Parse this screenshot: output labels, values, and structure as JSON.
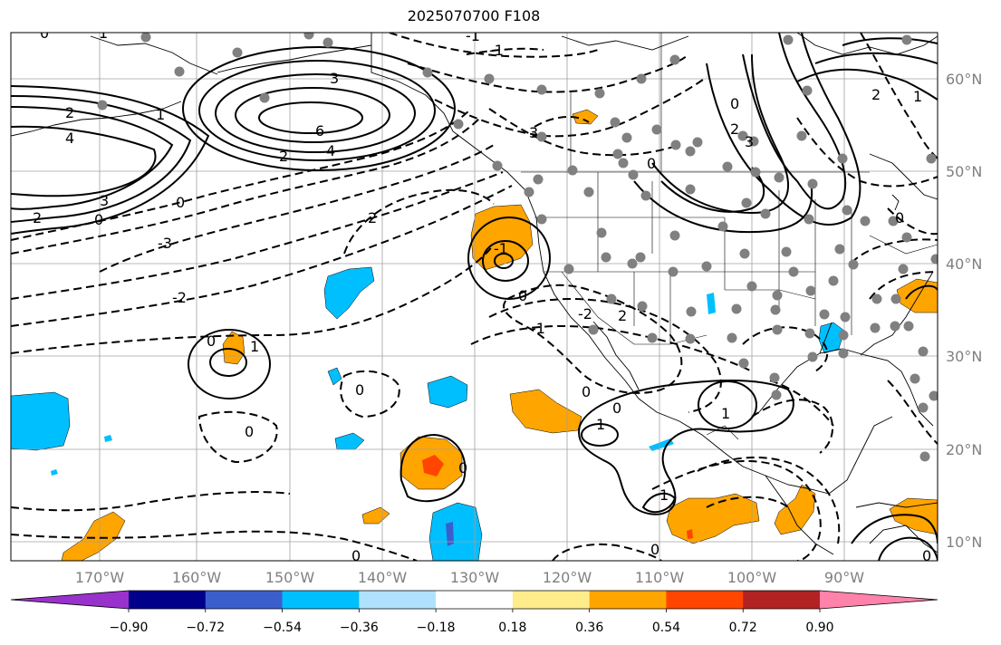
{
  "title": "2025070700 F108",
  "longitude_labels": [
    "170°W",
    "160°W",
    "150°W",
    "140°W",
    "130°W",
    "120°W",
    "110°W",
    "100°W",
    "90°W"
  ],
  "latitude_labels": [
    "60°N",
    "50°N",
    "40°N",
    "30°N",
    "20°N",
    "10°N"
  ],
  "colorbar": {
    "tick_labels": [
      "−0.90",
      "−0.72",
      "−0.54",
      "−0.36",
      "−0.18",
      "0.18",
      "0.36",
      "0.54",
      "0.72",
      "0.90"
    ],
    "colors": [
      "#9932cc",
      "#00008b",
      "#3a5fcd",
      "#00bfff",
      "#b0e2ff",
      "#ffffff",
      "#ffec8b",
      "#ffa500",
      "#ff4500",
      "#b22222",
      "#ff82ab"
    ]
  },
  "contour_labels": {
    "west_high_4": "4",
    "west_high_3": "3",
    "west_high_2": "2",
    "west_high_2b": "2",
    "west_high_1": "1",
    "west_high_0": "0",
    "west_low_3": "-3",
    "west_low_2": "-2",
    "aleutian_6": "6",
    "aleutian_4": "4",
    "aleutian_3": "3",
    "aleutian_2": "2",
    "coast_2": "2",
    "coast_1": "-1",
    "gulf_0": "0",
    "gulf_low_2": "-2",
    "canada_3": "3",
    "canada_0": "0",
    "east_2": "2",
    "east_1": "1",
    "east_3": "3",
    "east_0": "0",
    "ca_low_1": "-1",
    "ca_low_0": "0",
    "mex_2": "-2",
    "mex_2b": "2",
    "mex_1": "-1",
    "pac_0": "0",
    "pac_1": "1",
    "pac_0b": "0",
    "pac_0c": "0",
    "haw_0": "0",
    "mex_0": "0",
    "mex_1b": "1",
    "mex_1c": "1",
    "gulf_1": "1",
    "isth_1": "1",
    "south_0": "0",
    "south_0b": "0",
    "south_0c": "0",
    "south_0d": "0",
    "top_1": "-1",
    "top_1b": "1",
    "top_0": "0",
    "cent_0": "0"
  }
}
